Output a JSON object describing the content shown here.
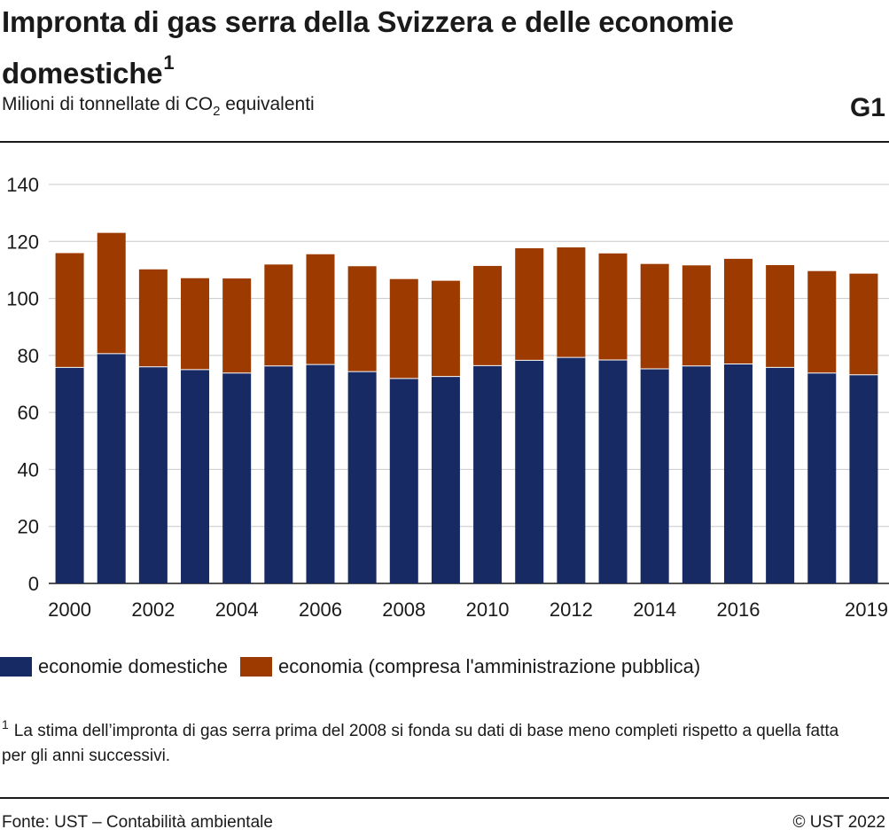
{
  "header": {
    "title": "Impronta di gas serra della Svizzera e delle economie domestiche",
    "title_footnote_marker": "1",
    "subtitle_before": "Milioni di tonnellate di CO",
    "subtitle_sub": "2",
    "subtitle_after": " equivalenti",
    "figure_id": "G1"
  },
  "legend": {
    "items": [
      {
        "label": "economie domestiche",
        "color": "#172a63"
      },
      {
        "label": "economia (compresa l'amministrazione pubblica)",
        "color": "#9c3a00"
      }
    ]
  },
  "footnote": {
    "marker": "1",
    "text": "La stima dell’impronta di gas serra prima del 2008 si fonda su dati di base meno completi rispetto a quella fatta per gli anni successivi."
  },
  "footer": {
    "source": "Fonte: UST – Contabilità ambientale",
    "copyright": "© UST 2022"
  },
  "chart_data": {
    "type": "bar",
    "stacked": true,
    "categories": [
      "2000",
      "2001",
      "2002",
      "2003",
      "2004",
      "2005",
      "2006",
      "2007",
      "2008",
      "2009",
      "2010",
      "2011",
      "2012",
      "2013",
      "2014",
      "2015",
      "2016",
      "2017",
      "2018",
      "2019"
    ],
    "x_tick_labels": [
      "2000",
      "",
      "2002",
      "",
      "2004",
      "",
      "2006",
      "",
      "2008",
      "",
      "2010",
      "",
      "2012",
      "",
      "2014",
      "",
      "2016",
      "",
      "",
      "2019"
    ],
    "series": [
      {
        "name": "economie domestiche",
        "color": "#172a63",
        "values": [
          75.8,
          80.6,
          76.0,
          75.0,
          73.8,
          76.3,
          76.8,
          74.3,
          71.9,
          72.6,
          76.4,
          78.3,
          79.3,
          78.4,
          75.3,
          76.3,
          77.0,
          75.8,
          73.8,
          73.2
        ]
      },
      {
        "name": "economia (compresa l'amministrazione pubblica)",
        "color": "#9c3a00",
        "values": [
          40.1,
          42.4,
          34.2,
          32.1,
          33.2,
          35.6,
          38.7,
          37.0,
          34.9,
          33.6,
          35.0,
          39.3,
          38.6,
          37.4,
          36.8,
          35.3,
          36.9,
          35.9,
          35.8,
          35.5
        ]
      }
    ],
    "ylim": [
      0,
      140
    ],
    "yticks": [
      0,
      20,
      40,
      60,
      80,
      100,
      120,
      140
    ],
    "grid": true
  }
}
